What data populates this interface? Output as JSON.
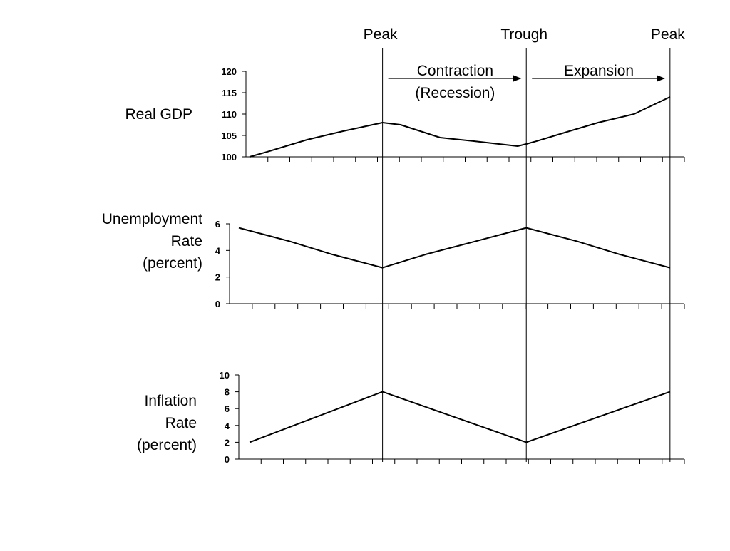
{
  "markers": [
    {
      "label": "Peak",
      "x": 20
    },
    {
      "label": "Trough",
      "x": 40
    },
    {
      "label": "Peak",
      "x": 60
    }
  ],
  "phases": [
    {
      "lines": [
        "Contraction",
        "(Recession)"
      ],
      "from": 20,
      "to": 40
    },
    {
      "lines": [
        "Expansion"
      ],
      "from": 40,
      "to": 60
    }
  ],
  "chart_data": [
    {
      "type": "line",
      "label_lines": [
        "Real GDP"
      ],
      "ylim": [
        100,
        120
      ],
      "yticks": [
        100,
        105,
        110,
        115,
        120
      ],
      "xlim": [
        0,
        62
      ],
      "x": [
        1.5,
        4,
        9.5,
        14.5,
        20,
        22.5,
        28,
        32.5,
        38.8,
        40,
        41.5,
        46,
        50,
        55,
        60
      ],
      "values": [
        100,
        101.2,
        104,
        106,
        108,
        107.5,
        104.5,
        103.7,
        102.5,
        103,
        103.7,
        106,
        108,
        110,
        114
      ],
      "axis_ticks": 20,
      "color": "#000000"
    },
    {
      "type": "line",
      "label_lines": [
        "Unemployment",
        "Rate",
        "(percent)"
      ],
      "ylim": [
        0,
        6
      ],
      "yticks": [
        0,
        2,
        4,
        6
      ],
      "xlim": [
        0,
        62
      ],
      "x": [
        0,
        7,
        13,
        20,
        26,
        33,
        40,
        47,
        53,
        60
      ],
      "values": [
        5.7,
        4.7,
        3.7,
        2.7,
        3.7,
        4.7,
        5.7,
        4.7,
        3.7,
        2.7
      ],
      "axis_ticks": 20,
      "color": "#000000"
    },
    {
      "type": "line",
      "label_lines": [
        "Inflation",
        "Rate",
        "(percent)"
      ],
      "ylim": [
        0,
        10
      ],
      "yticks": [
        0,
        2,
        4,
        6,
        8,
        10
      ],
      "xlim": [
        0,
        62
      ],
      "x": [
        1.5,
        20,
        40,
        60
      ],
      "values": [
        2,
        8,
        2,
        8
      ],
      "axis_ticks": 20,
      "color": "#000000"
    }
  ]
}
